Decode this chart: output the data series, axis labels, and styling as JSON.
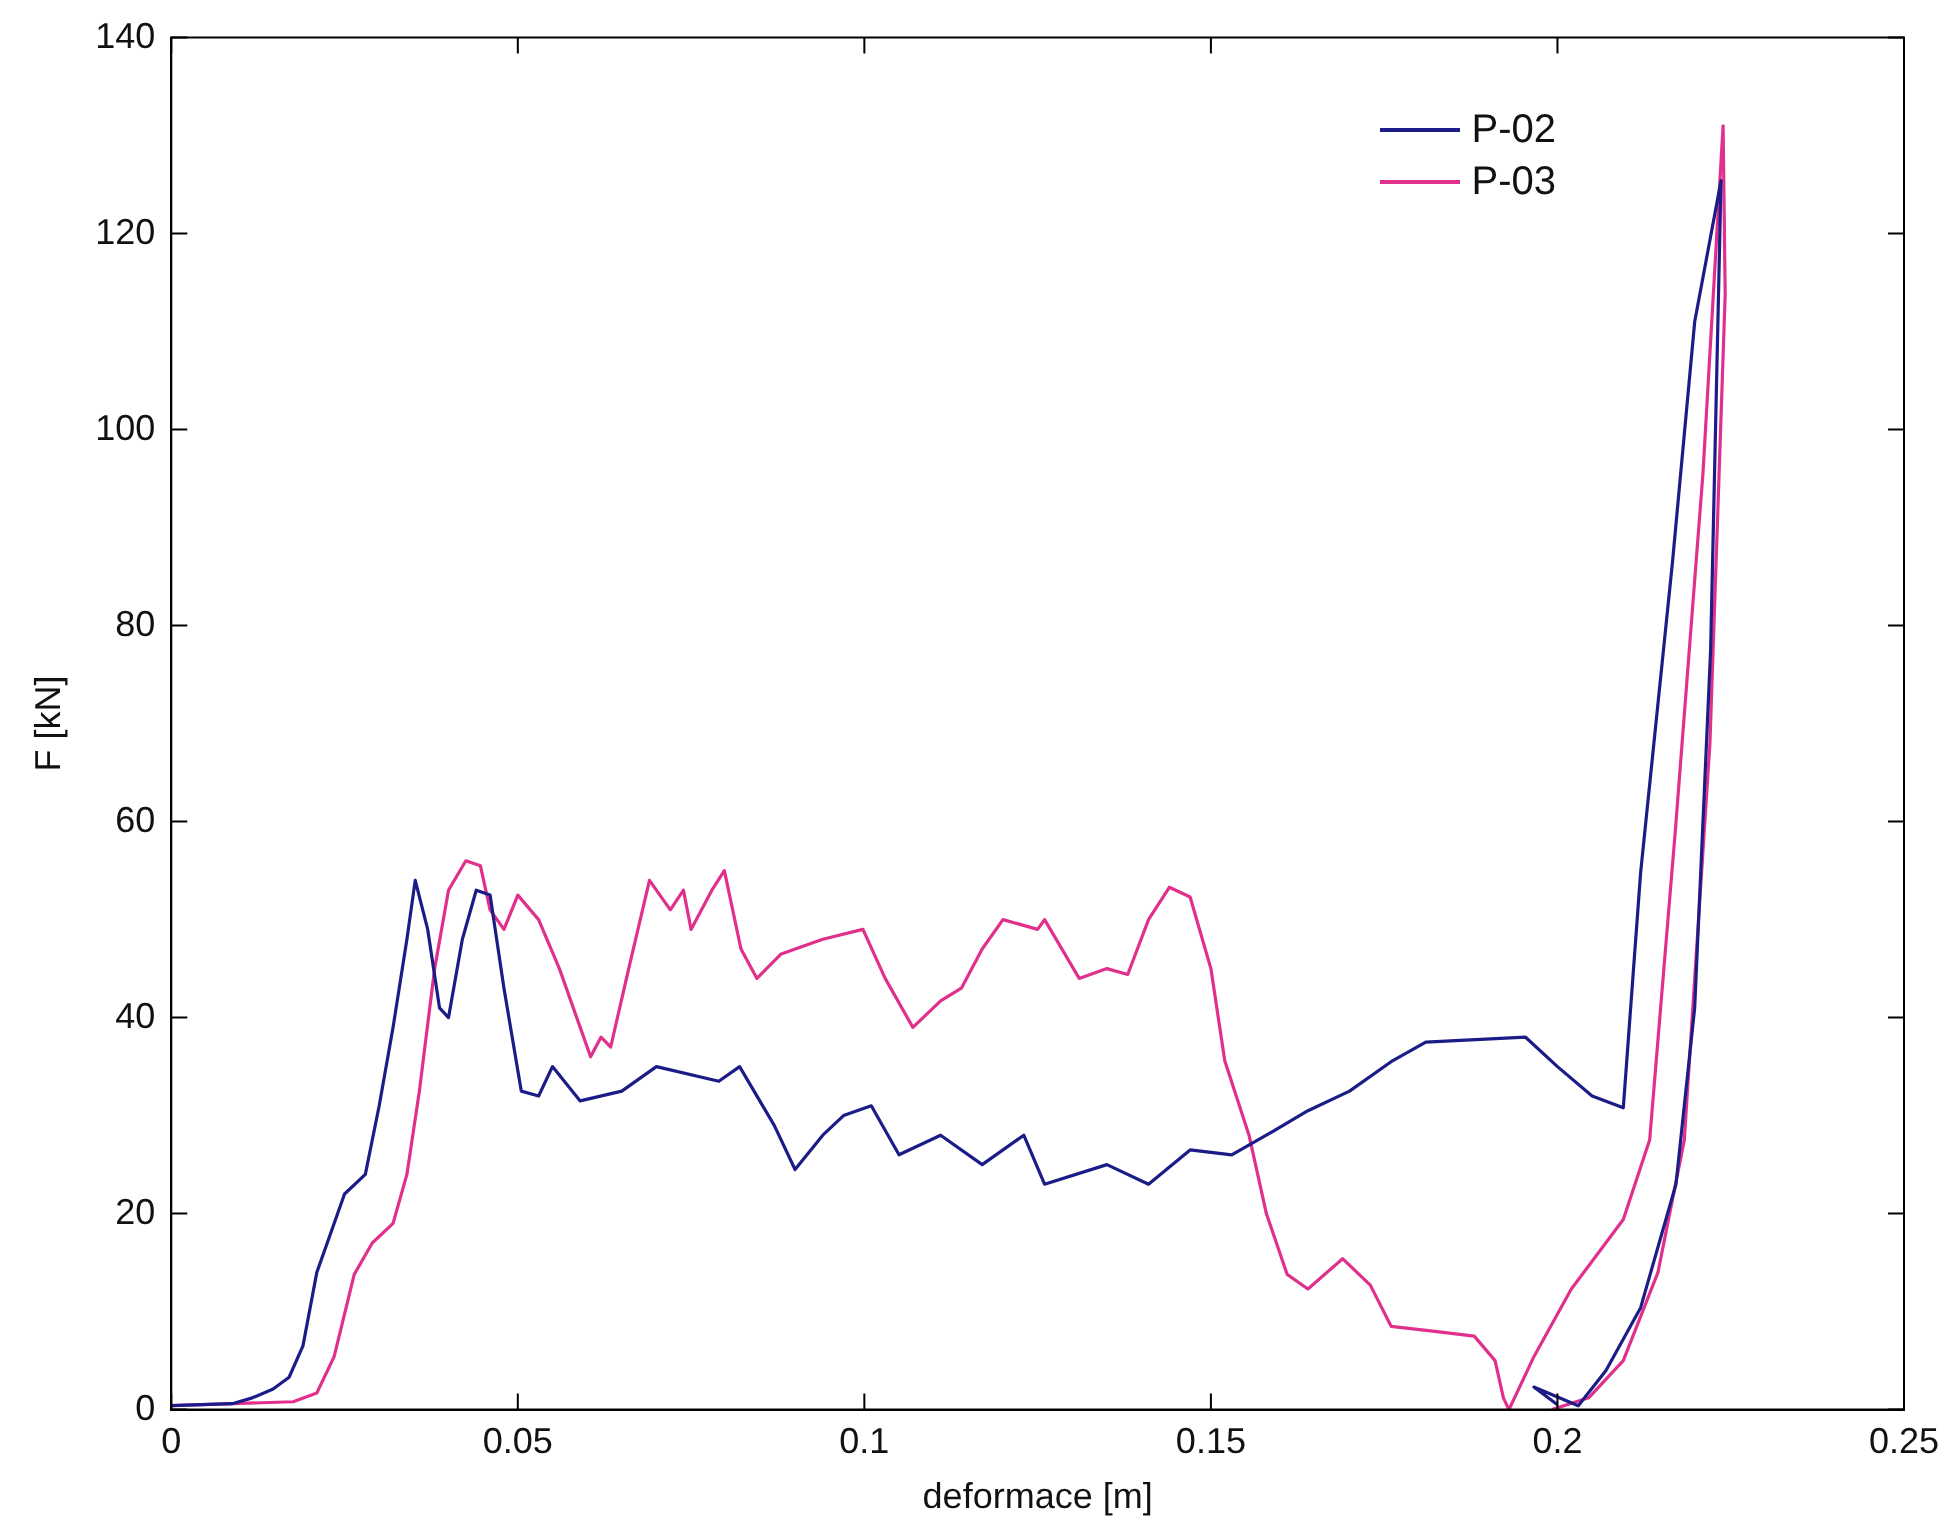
{
  "chart_data": {
    "type": "line",
    "xlabel": "deformace [m]",
    "ylabel": "F [kN]",
    "xlim": [
      0,
      0.25
    ],
    "ylim": [
      0,
      140
    ],
    "xticks": [
      0,
      0.05,
      0.1,
      0.15,
      0.2,
      0.25
    ],
    "yticks": [
      0,
      20,
      40,
      60,
      80,
      100,
      120,
      140
    ],
    "grid": false,
    "legend": "top right",
    "marker": "none",
    "line_style": "solid",
    "series": [
      {
        "name": "P-02",
        "color": "#1c1c88",
        "x": [
          0,
          0.0088,
          0.0117,
          0.0147,
          0.017,
          0.019,
          0.021,
          0.023,
          0.025,
          0.028,
          0.03,
          0.032,
          0.034,
          0.0352,
          0.037,
          0.0387,
          0.04,
          0.042,
          0.044,
          0.046,
          0.048,
          0.0505,
          0.053,
          0.055,
          0.059,
          0.065,
          0.07,
          0.079,
          0.082,
          0.087,
          0.09,
          0.094,
          0.097,
          0.101,
          0.105,
          0.111,
          0.117,
          0.123,
          0.126,
          0.135,
          0.141,
          0.147,
          0.153,
          0.158,
          0.164,
          0.17,
          0.176,
          0.181,
          0.1954,
          0.2,
          0.205,
          0.2095,
          0.212,
          0.2166,
          0.2198,
          0.2236,
          0.2221,
          0.2198,
          0.2171,
          0.212,
          0.207,
          0.203,
          0.1966,
          0.2
        ],
        "values": [
          0.4,
          0.6,
          1.2,
          2.1,
          3.3,
          6.5,
          14,
          18,
          22,
          24,
          31,
          39,
          48,
          54,
          49,
          41,
          40,
          48,
          53,
          52.5,
          43,
          32.5,
          32,
          35,
          31.5,
          32.5,
          35,
          33.5,
          35,
          29,
          24.5,
          28,
          30,
          31,
          26,
          28,
          25,
          28,
          23,
          25,
          23,
          26.5,
          26,
          28,
          30.5,
          32.5,
          35.5,
          37.5,
          38,
          35,
          32,
          30.8,
          54.8,
          86.5,
          111,
          125.4,
          77.5,
          41,
          23,
          10.4,
          4,
          0.4,
          2.3,
          0.5
        ]
      },
      {
        "name": "P-03",
        "color": "#e0308c",
        "x": [
          0,
          0.0176,
          0.021,
          0.0235,
          0.0264,
          0.029,
          0.032,
          0.034,
          0.0358,
          0.038,
          0.04,
          0.0425,
          0.0446,
          0.046,
          0.048,
          0.05,
          0.053,
          0.056,
          0.059,
          0.0605,
          0.062,
          0.0634,
          0.066,
          0.069,
          0.072,
          0.0739,
          0.075,
          0.078,
          0.0798,
          0.0822,
          0.0845,
          0.088,
          0.094,
          0.0998,
          0.103,
          0.107,
          0.111,
          0.114,
          0.117,
          0.12,
          0.125,
          0.126,
          0.131,
          0.135,
          0.138,
          0.141,
          0.144,
          0.147,
          0.15,
          0.152,
          0.1555,
          0.158,
          0.161,
          0.164,
          0.169,
          0.173,
          0.176,
          0.182,
          0.188,
          0.191,
          0.1922,
          0.193,
          0.1966,
          0.202,
          0.2095,
          0.2133,
          0.217,
          0.221,
          0.2239,
          0.2242,
          0.222,
          0.2183,
          0.2145,
          0.2095,
          0.2045,
          0.1992
        ],
        "values": [
          0.4,
          0.8,
          1.7,
          5.4,
          13.8,
          17,
          19,
          24,
          32.5,
          45,
          53,
          56,
          55.5,
          51,
          49,
          52.5,
          50,
          45,
          39,
          36,
          38,
          37,
          45,
          54,
          51,
          53,
          49,
          53,
          55,
          47,
          44,
          46.5,
          48,
          49,
          44,
          39,
          41.7,
          43,
          47,
          50,
          49,
          50,
          44,
          45,
          44.4,
          50,
          53.3,
          52.3,
          45,
          35.6,
          28,
          20,
          13.8,
          12.3,
          15.4,
          12.7,
          8.5,
          8,
          7.5,
          5,
          1.2,
          0,
          5.4,
          12.3,
          19.4,
          27.5,
          59,
          95.6,
          131,
          113.8,
          68,
          27.5,
          14,
          5,
          1.2,
          0
        ]
      }
    ]
  }
}
